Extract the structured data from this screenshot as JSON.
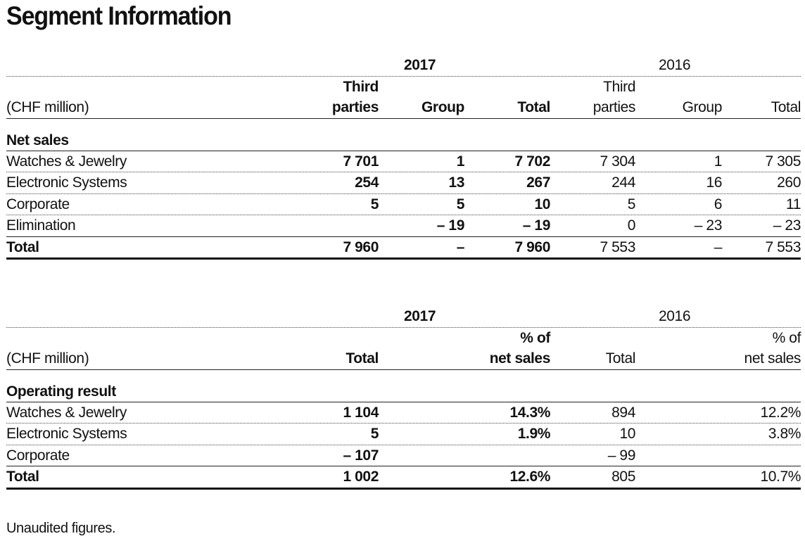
{
  "title": "Segment Information",
  "table1": {
    "year_current": "2017",
    "year_prior": "2016",
    "unit_label": "(CHF million)",
    "headers": {
      "third_top": "Third",
      "third_bottom": "parties",
      "group": "Group",
      "total": "Total"
    },
    "section_title": "Net sales",
    "rows": [
      {
        "label": "Watches & Jewelry",
        "c_third": "7 701",
        "c_group": "1",
        "c_total": "7 702",
        "p_third": "7 304",
        "p_group": "1",
        "p_total": "7 305"
      },
      {
        "label": "Electronic Systems",
        "c_third": "254",
        "c_group": "13",
        "c_total": "267",
        "p_third": "244",
        "p_group": "16",
        "p_total": "260"
      },
      {
        "label": "Corporate",
        "c_third": "5",
        "c_group": "5",
        "c_total": "10",
        "p_third": "5",
        "p_group": "6",
        "p_total": "11"
      },
      {
        "label": "Elimination",
        "c_third": "",
        "c_group": "– 19",
        "c_total": "– 19",
        "p_third": "0",
        "p_group": "– 23",
        "p_total": "– 23"
      }
    ],
    "total": {
      "label": "Total",
      "c_third": "7 960",
      "c_group": "–",
      "c_total": "7 960",
      "p_third": "7 553",
      "p_group": "–",
      "p_total": "7 553"
    }
  },
  "table2": {
    "year_current": "2017",
    "year_prior": "2016",
    "unit_label": "(CHF million)",
    "headers": {
      "total": "Total",
      "pct_top": "% of",
      "pct_bottom": "net sales"
    },
    "section_title": "Operating result",
    "rows": [
      {
        "label": "Watches & Jewelry",
        "c_total": "1 104",
        "c_pct": "14.3%",
        "p_total": "894",
        "p_pct": "12.2%"
      },
      {
        "label": "Electronic Systems",
        "c_total": "5",
        "c_pct": "1.9%",
        "p_total": "10",
        "p_pct": "3.8%"
      },
      {
        "label": "Corporate",
        "c_total": "– 107",
        "c_pct": "",
        "p_total": "– 99",
        "p_pct": ""
      }
    ],
    "total": {
      "label": "Total",
      "c_total": "1 002",
      "c_pct": "12.6%",
      "p_total": "805",
      "p_pct": "10.7%"
    }
  },
  "footnote": "Unaudited figures."
}
